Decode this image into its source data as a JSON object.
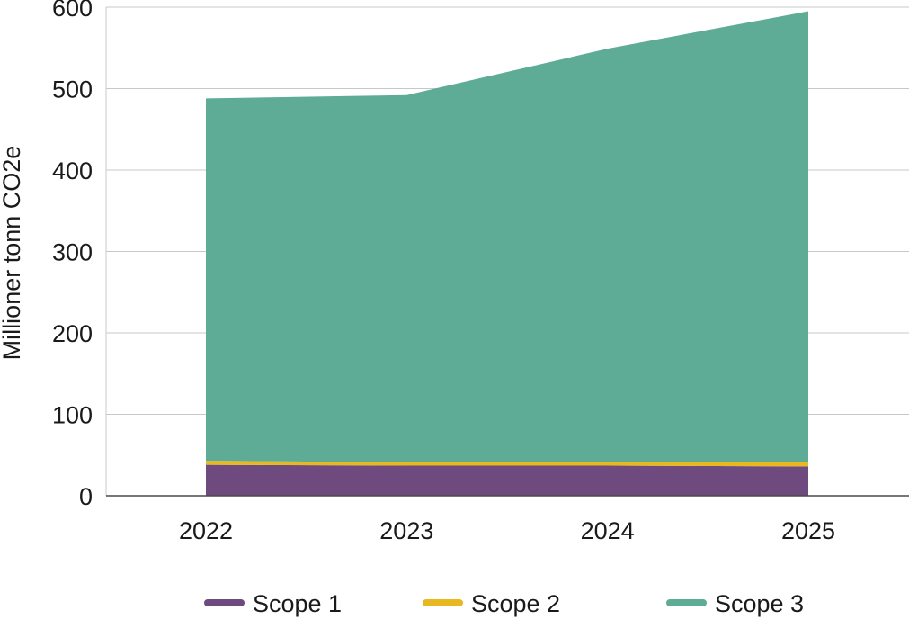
{
  "chart_data": {
    "type": "area",
    "stacked": true,
    "title": "",
    "xlabel": "",
    "ylabel": "Millioner tonn CO2e",
    "categories": [
      "2022",
      "2023",
      "2024",
      "2025"
    ],
    "ylim": [
      0,
      600
    ],
    "yticks": [
      0,
      100,
      200,
      300,
      400,
      500,
      600
    ],
    "grid": true,
    "legend_position": "bottom",
    "series": [
      {
        "name": "Scope 1",
        "color": "#6e4a7e",
        "values": [
          38,
          37,
          37,
          36
        ]
      },
      {
        "name": "Scope 2",
        "color": "#e8b820",
        "values": [
          5,
          4,
          4,
          5
        ]
      },
      {
        "name": "Scope 3",
        "color": "#5eab96",
        "values": [
          445,
          451,
          508,
          554
        ]
      }
    ]
  }
}
